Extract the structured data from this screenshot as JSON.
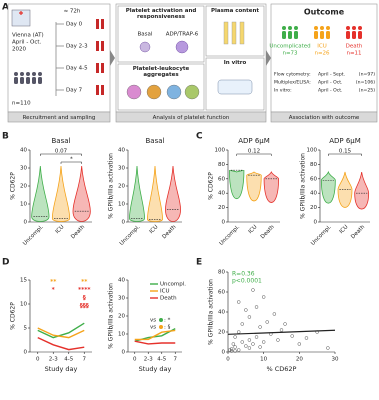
{
  "panel_labels": [
    "A",
    "B",
    "C",
    "D",
    "E"
  ],
  "A": {
    "recruitment": {
      "city": "Vienna (AT)",
      "period": "April - Oct.",
      "year": "2020",
      "n": "n=110",
      "interval": "≈ 72h",
      "days": [
        "Day 0",
        "Day 2-3",
        "Day 4-5",
        "Day 7"
      ],
      "caption": "Recruitment and sampling"
    },
    "analysis": {
      "activation": "Platelet activation and responsiveness",
      "basal": "Basal",
      "agonist": "ADP/TRAP-6",
      "aggregates": "Platelet-leukocyte aggregates",
      "plasma": "Plasma content",
      "invitro": "In vitro",
      "caption": "Analysis of platelet function"
    },
    "outcome": {
      "title": "Outcome",
      "groups": [
        {
          "name": "Uncomplicated",
          "n": "n=73",
          "color": "#3fae49"
        },
        {
          "name": "ICU",
          "n": "n=26",
          "color": "#f5a31a"
        },
        {
          "name": "Death",
          "n": "n=11",
          "color": "#e5312b"
        }
      ],
      "cohorts": [
        {
          "method": "Flow cytometry:",
          "period": "April - Sept.",
          "n": "(n=97)"
        },
        {
          "method": "Multiplex/ELISA:",
          "period": "April - Oct.",
          "n": "(n=106)"
        },
        {
          "method": "In vitro:",
          "period": "April - Oct.",
          "n": "(n=25)"
        }
      ],
      "caption": "Association with outcome"
    }
  },
  "groups": {
    "names": [
      "Uncompl.",
      "ICU",
      "Death"
    ],
    "colors": [
      "#3fae49",
      "#f5a31a",
      "#e5312b"
    ]
  },
  "B": [
    {
      "title": "Basal",
      "ylabel": "% CD62P",
      "yticks": [
        0,
        10,
        20,
        30,
        40
      ],
      "medians": [
        3,
        2,
        6
      ],
      "annotations": [
        "0.07",
        "*"
      ]
    },
    {
      "title": "Basal",
      "ylabel": "% GPIIb/IIIa activation",
      "yticks": [
        0,
        10,
        20,
        30,
        40
      ],
      "medians": [
        2,
        1.5,
        7
      ],
      "annotations": []
    }
  ],
  "C": [
    {
      "title": "ADP 6µM",
      "ylabel": "% CD62P",
      "yticks": [
        0,
        20,
        40,
        60,
        80,
        100
      ],
      "medians": [
        72,
        65,
        60
      ],
      "annotations": [
        "0.12"
      ]
    },
    {
      "title": "ADP 6µM",
      "ylabel": "% GPIIb/IIIa activation",
      "yticks": [
        0,
        20,
        40,
        60,
        80,
        100
      ],
      "medians": [
        58,
        45,
        40
      ],
      "annotations": [
        "0.15"
      ]
    }
  ],
  "D": {
    "xlabel": "Study day",
    "xticks": [
      "0",
      "2-3",
      "4-5",
      "7"
    ],
    "plots": [
      {
        "ylabel": "% CD62P",
        "yticks": [
          0,
          5,
          10,
          15
        ],
        "series": [
          {
            "values": [
              4.5,
              3,
              4,
              6
            ]
          },
          {
            "values": [
              5,
              3.5,
              3,
              4.5
            ]
          },
          {
            "values": [
              3,
              1.5,
              0.5,
              1
            ]
          }
        ],
        "annotations": [
          {
            "text": "**",
            "color": "#f5a31a"
          },
          {
            "text": "*",
            "color": "#e5312b"
          },
          {
            "text": "**",
            "color": "#f5a31a"
          },
          {
            "text": "****",
            "color": "#e5312b"
          },
          {
            "text": "§",
            "color": "#e5312b"
          },
          {
            "text": "§§§",
            "color": "#e5312b"
          }
        ]
      },
      {
        "ylabel": "% GPIIb/IIIa activation",
        "yticks": [
          0,
          10,
          20,
          30,
          40
        ],
        "series": [
          {
            "values": [
              6,
              8,
              9,
              13
            ]
          },
          {
            "values": [
              7,
              7,
              11,
              12
            ]
          },
          {
            "values": [
              6,
              4.5,
              5,
              5
            ]
          }
        ]
      }
    ],
    "comparisons": [
      {
        "label": "vs",
        "symbol": ": *"
      },
      {
        "label": "vs",
        "symbol": ": §"
      }
    ]
  },
  "E": {
    "xlabel": "% CD62P",
    "ylabel": "% GPIIb/IIIa activation",
    "xticks": [
      0,
      10,
      20,
      30
    ],
    "yticks": [
      0,
      20,
      40,
      60,
      80
    ],
    "stats": [
      "R=0.36",
      "p<0.0001"
    ],
    "stats_color": "#3fae49",
    "points": [
      [
        1,
        3
      ],
      [
        2,
        5
      ],
      [
        3,
        2
      ],
      [
        1.5,
        8
      ],
      [
        4,
        10
      ],
      [
        5,
        6
      ],
      [
        6,
        12
      ],
      [
        2,
        15
      ],
      [
        3,
        20
      ],
      [
        7,
        8
      ],
      [
        8,
        15
      ],
      [
        10,
        10
      ],
      [
        12,
        18
      ],
      [
        9,
        25
      ],
      [
        4,
        28
      ],
      [
        6,
        35
      ],
      [
        5,
        42
      ],
      [
        3,
        50
      ],
      [
        11,
        30
      ],
      [
        14,
        12
      ],
      [
        15,
        22
      ],
      [
        18,
        16
      ],
      [
        20,
        8
      ],
      [
        22,
        14
      ],
      [
        25,
        20
      ],
      [
        28,
        4
      ],
      [
        13,
        38
      ],
      [
        8,
        45
      ],
      [
        2,
        1
      ],
      [
        1,
        1
      ],
      [
        0.5,
        2
      ],
      [
        6,
        4
      ],
      [
        9,
        5
      ],
      [
        16,
        28
      ],
      [
        10,
        55
      ],
      [
        7,
        62
      ]
    ]
  }
}
